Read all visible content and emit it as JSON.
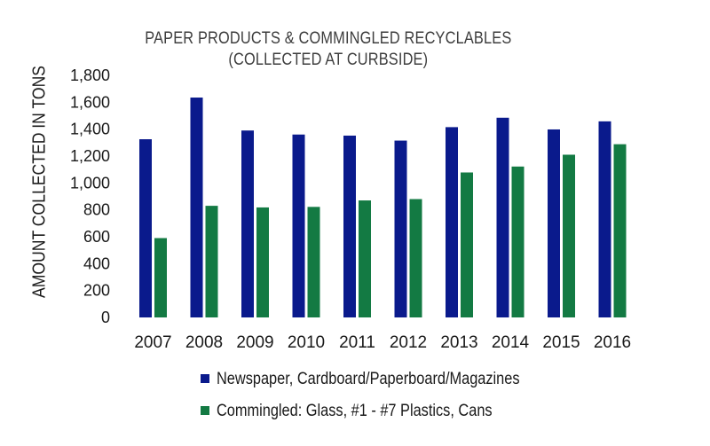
{
  "chart_data": {
    "type": "bar",
    "title_line1": "PAPER PRODUCTS & COMMINGLED RECYCLABLES",
    "title_line2": "(COLLECTED AT CURBSIDE)",
    "xlabel": "",
    "ylabel": "AMOUNT COLLECTED IN TONS",
    "ylim": [
      0,
      1800
    ],
    "yticks": [
      "0",
      "200",
      "400",
      "600",
      "800",
      "1,000",
      "1,200",
      "1,400",
      "1,600",
      "1,800"
    ],
    "categories": [
      "2007",
      "2008",
      "2009",
      "2010",
      "2011",
      "2012",
      "2013",
      "2014",
      "2015",
      "2016"
    ],
    "series": [
      {
        "name": "Newspaper, Cardboard/Paperboard/Magazines",
        "color": "#0a1a8c",
        "values": [
          1325,
          1635,
          1390,
          1360,
          1352,
          1315,
          1415,
          1485,
          1398,
          1458
        ]
      },
      {
        "name": "Commingled: Glass, #1 - #7 Plastics, Cans",
        "color": "#137a43",
        "values": [
          590,
          830,
          818,
          822,
          870,
          880,
          1078,
          1122,
          1210,
          1288
        ]
      }
    ],
    "grid": false,
    "legend_position": "bottom"
  }
}
